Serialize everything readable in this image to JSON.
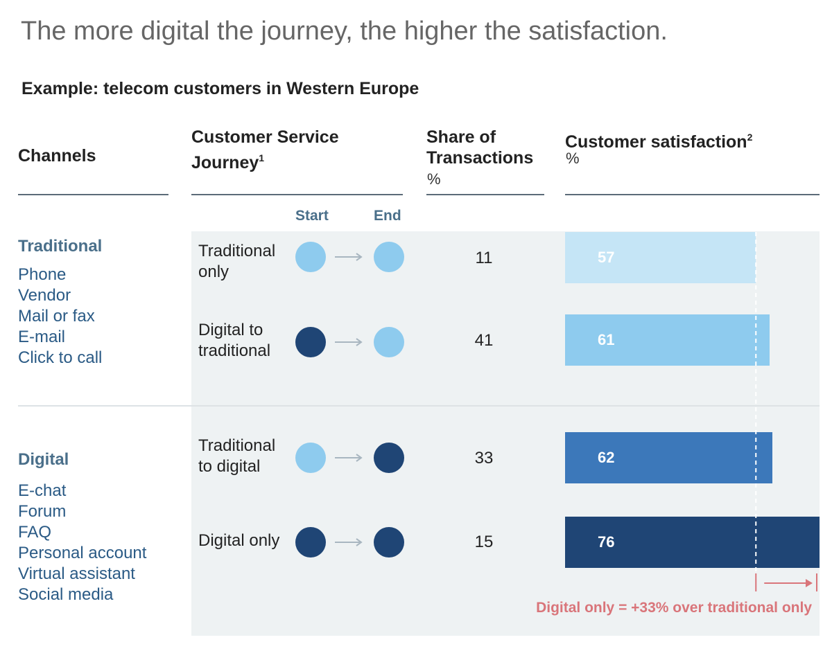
{
  "title": "The more digital the journey, the higher the satisfaction.",
  "subtitle": "Example: telecom customers in Western Europe",
  "headers": {
    "channels": "Channels",
    "journey_line1": "Customer Service",
    "journey_line2": "Journey",
    "journey_sup": "1",
    "share_line1": "Share of",
    "share_line2": "Transactions",
    "share_unit": "%",
    "sat": "Customer satisfaction",
    "sat_sup": "2",
    "sat_unit": "%"
  },
  "start_label": "Start",
  "end_label": "End",
  "groups": [
    {
      "name": "Traditional",
      "channels": [
        "Phone",
        "Vendor",
        "Mail or fax",
        "E-mail",
        "Click to call"
      ]
    },
    {
      "name": "Digital",
      "channels": [
        "E-chat",
        "Forum",
        "FAQ",
        "Personal account",
        "Virtual assistant",
        "Social media"
      ]
    }
  ],
  "colors": {
    "traditional_dot": "#8ecbee",
    "digital_dot": "#1f4575",
    "bars": [
      "#c5e5f6",
      "#8ecbee",
      "#3c78ba",
      "#1f4575"
    ],
    "note": "#d9757a"
  },
  "chart_data": {
    "type": "bar",
    "categories": [
      "Traditional only",
      "Digital to traditional",
      "Traditional to digital",
      "Digital only"
    ],
    "journeys": [
      {
        "line1": "Traditional",
        "line2": "only",
        "start": "traditional",
        "end": "traditional"
      },
      {
        "line1": "Digital to",
        "line2": "traditional",
        "start": "digital",
        "end": "traditional"
      },
      {
        "line1": "Traditional",
        "line2": "to digital",
        "start": "traditional",
        "end": "digital"
      },
      {
        "line1": "Digital only",
        "line2": "",
        "start": "digital",
        "end": "digital"
      }
    ],
    "share_of_transactions": [
      11,
      41,
      33,
      15
    ],
    "values": [
      57,
      61,
      62,
      76
    ],
    "xlabel": "Customer satisfaction, %",
    "reference_value": 57,
    "annotation": "Digital only = +33% over traditional only"
  }
}
